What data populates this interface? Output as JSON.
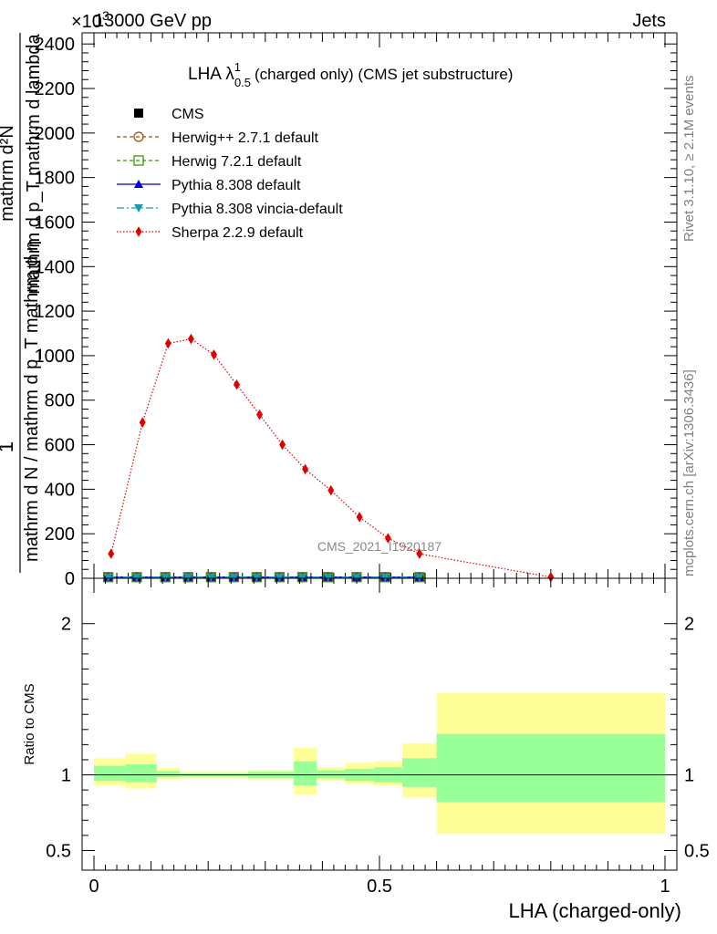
{
  "header": {
    "left": "13000 GeV pp",
    "right": "Jets",
    "exponent": "×10",
    "exponent_power": "3"
  },
  "side_labels": {
    "rivet": "Rivet 3.1.10, ≥ 2.1M events",
    "mcplots": "mcplots.cern.ch [arXiv:1306.3436]"
  },
  "watermark": "CMS_2021_I1920187",
  "chart_data": [
    {
      "type": "line",
      "title": "LHA λ",
      "title_sup": "1",
      "title_sub": "0.5",
      "title_suffix": "(charged only) (CMS jet substructure)",
      "ylabel_numerator": "1",
      "ylabel_denominator": "mathrm d N / mathrm d p_T mathrm d η",
      "ylabel_stacked_numerator": "mathrm d²N",
      "ylabel_stacked_denominator": "mathrm d p_T mathrm d lambda",
      "xlim": [
        0,
        1
      ],
      "ylim": [
        0,
        2450
      ],
      "yticks": [
        0,
        200,
        400,
        600,
        800,
        1000,
        1200,
        1400,
        1600,
        1800,
        2000,
        2200,
        2400
      ],
      "ytick_labels": [
        "0",
        "200",
        "400",
        "600",
        "800",
        "1000",
        "1200",
        "1400",
        "1600",
        "1800",
        "2000",
        "2200",
        "2400"
      ],
      "legend_position": "top-left",
      "series": [
        {
          "name": "CMS",
          "marker": "square",
          "color": "#000000",
          "x": [
            0.025,
            0.075,
            0.125,
            0.165,
            0.205,
            0.245,
            0.285,
            0.325,
            0.365,
            0.41,
            0.46,
            0.51,
            0.57
          ],
          "y": [
            5,
            5,
            5,
            5,
            5,
            5,
            5,
            5,
            5,
            5,
            5,
            5,
            5
          ]
        },
        {
          "name": "Herwig++ 2.7.1 default",
          "marker": "open-circle",
          "color": "#a05000",
          "dash": "4,3",
          "x": [
            0.025,
            0.075,
            0.125,
            0.165,
            0.205,
            0.245,
            0.285,
            0.325,
            0.365,
            0.41,
            0.46,
            0.51,
            0.57
          ],
          "y": [
            5,
            5,
            5,
            5,
            5,
            5,
            5,
            5,
            5,
            5,
            5,
            5,
            5
          ]
        },
        {
          "name": "Herwig 7.2.1 default",
          "marker": "open-square",
          "color": "#3a9a00",
          "dash": "4,3",
          "x": [
            0.025,
            0.075,
            0.125,
            0.165,
            0.205,
            0.245,
            0.285,
            0.325,
            0.365,
            0.41,
            0.46,
            0.51,
            0.57
          ],
          "y": [
            5,
            5,
            5,
            5,
            5,
            5,
            5,
            5,
            5,
            5,
            5,
            5,
            5
          ]
        },
        {
          "name": "Pythia 8.308 default",
          "marker": "triangle-up",
          "color": "#0000cc",
          "dash": "",
          "x": [
            0.025,
            0.075,
            0.125,
            0.165,
            0.205,
            0.245,
            0.285,
            0.325,
            0.365,
            0.41,
            0.46,
            0.51,
            0.57
          ],
          "y": [
            5,
            5,
            5,
            5,
            5,
            5,
            5,
            5,
            5,
            5,
            5,
            5,
            5
          ]
        },
        {
          "name": "Pythia 8.308 vincia-default",
          "marker": "triangle-down",
          "color": "#1a9aaa",
          "dash": "8,3,2,3",
          "x": [
            0.025,
            0.075,
            0.125,
            0.165,
            0.205,
            0.245,
            0.285,
            0.325,
            0.365,
            0.41,
            0.46,
            0.51,
            0.57
          ],
          "y": [
            5,
            5,
            5,
            5,
            5,
            5,
            5,
            5,
            5,
            5,
            5,
            5,
            5
          ]
        },
        {
          "name": "Sherpa 2.2.9 default",
          "marker": "diamond",
          "color": "#e00000",
          "dash": "1.5,2",
          "x": [
            0.03,
            0.085,
            0.13,
            0.17,
            0.21,
            0.25,
            0.29,
            0.33,
            0.37,
            0.415,
            0.465,
            0.515,
            0.57,
            0.8
          ],
          "y": [
            110,
            700,
            1055,
            1075,
            1005,
            870,
            735,
            600,
            490,
            395,
            275,
            180,
            110,
            5
          ]
        }
      ]
    },
    {
      "type": "area",
      "ylabel": "Ratio to CMS",
      "xlabel": "LHA (charged-only)",
      "xlim": [
        0,
        1
      ],
      "ylim": [
        0.37,
        2.3
      ],
      "xticks": [
        0,
        0.5,
        1
      ],
      "xtick_labels": [
        "0",
        "0.5",
        "1"
      ],
      "yticks": [
        0.5,
        1,
        2
      ],
      "ytick_labels": [
        "0.5",
        "1",
        "2"
      ],
      "bands": [
        {
          "x0": 0.0,
          "x1": 0.055,
          "inner": [
            0.96,
            1.06
          ],
          "outer": [
            0.93,
            1.11
          ]
        },
        {
          "x0": 0.055,
          "x1": 0.11,
          "inner": [
            0.95,
            1.07
          ],
          "outer": [
            0.91,
            1.14
          ]
        },
        {
          "x0": 0.11,
          "x1": 0.15,
          "inner": [
            0.985,
            1.025
          ],
          "outer": [
            0.97,
            1.045
          ]
        },
        {
          "x0": 0.15,
          "x1": 0.27,
          "inner": [
            0.99,
            1.01
          ],
          "outer": [
            0.98,
            1.02
          ]
        },
        {
          "x0": 0.27,
          "x1": 0.35,
          "inner": [
            0.98,
            1.02
          ],
          "outer": [
            0.97,
            1.03
          ]
        },
        {
          "x0": 0.35,
          "x1": 0.39,
          "inner": [
            0.93,
            1.09
          ],
          "outer": [
            0.87,
            1.18
          ]
        },
        {
          "x0": 0.39,
          "x1": 0.44,
          "inner": [
            0.98,
            1.03
          ],
          "outer": [
            0.96,
            1.05
          ]
        },
        {
          "x0": 0.44,
          "x1": 0.49,
          "inner": [
            0.96,
            1.04
          ],
          "outer": [
            0.94,
            1.08
          ]
        },
        {
          "x0": 0.49,
          "x1": 0.54,
          "inner": [
            0.95,
            1.05
          ],
          "outer": [
            0.93,
            1.09
          ]
        },
        {
          "x0": 0.54,
          "x1": 0.6,
          "inner": [
            0.92,
            1.11
          ],
          "outer": [
            0.85,
            1.21
          ]
        },
        {
          "x0": 0.6,
          "x1": 1.0,
          "inner": [
            0.82,
            1.27
          ],
          "outer": [
            0.61,
            1.54
          ]
        }
      ],
      "band_colors": {
        "inner": "#99ff99",
        "outer": "#ffff99"
      }
    }
  ]
}
